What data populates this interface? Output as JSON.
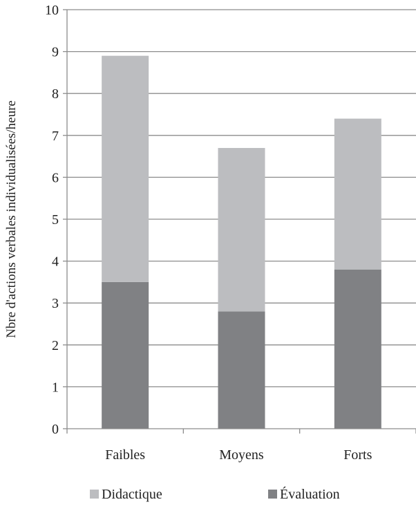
{
  "chart_data": {
    "type": "bar",
    "stacked": true,
    "title": "",
    "xlabel": "",
    "ylabel": "Nbre d'actions verbales individualisées/heure",
    "categories": [
      "Faibles",
      "Moyens",
      "Forts"
    ],
    "series": [
      {
        "name": "Évaluation",
        "values": [
          3.5,
          2.8,
          3.8
        ],
        "color": "#808184"
      },
      {
        "name": "Didactique",
        "values": [
          5.4,
          3.9,
          3.6
        ],
        "color": "#bcbdc0"
      }
    ],
    "ylim": [
      0,
      10
    ],
    "yticks": [
      "0",
      "1",
      "2",
      "3",
      "4",
      "5",
      "6",
      "7",
      "8",
      "9",
      "10"
    ],
    "grid": true,
    "legend": {
      "position": "bottom",
      "entries": [
        "Didactique",
        "Évaluation"
      ]
    },
    "colors": {
      "grid": "#8c8c8c",
      "axis": "#8c8c8c"
    }
  }
}
